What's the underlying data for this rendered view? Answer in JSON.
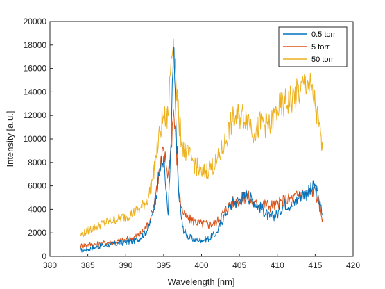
{
  "chart_data": {
    "type": "line",
    "title": "",
    "xlabel": "Wavelength [nm]",
    "ylabel": "Intensity [a.u.]",
    "xlim": [
      380,
      420
    ],
    "ylim": [
      0,
      20000
    ],
    "xticks": [
      "380",
      "385",
      "390",
      "395",
      "400",
      "405",
      "410",
      "415",
      "420"
    ],
    "yticks": [
      "0",
      "2000",
      "4000",
      "6000",
      "8000",
      "10000",
      "12000",
      "14000",
      "16000",
      "18000",
      "20000"
    ],
    "grid": false,
    "legend_position": "top-right",
    "series": [
      {
        "name": "0.5 torr",
        "color": "#0072BD",
        "x": [
          384,
          385,
          386,
          387,
          388,
          389,
          390,
          391,
          392,
          393,
          393.5,
          394,
          394.5,
          395,
          395.3,
          395.6,
          396,
          396.3,
          396.6,
          397,
          397.5,
          398,
          399,
          400,
          401,
          402,
          403,
          404,
          405,
          406,
          407,
          408,
          409,
          410,
          411,
          412,
          413,
          414,
          415,
          416
        ],
        "y": [
          500,
          600,
          800,
          900,
          1000,
          1100,
          1200,
          1300,
          1600,
          2400,
          3500,
          5200,
          7400,
          8500,
          5600,
          3500,
          10000,
          17800,
          12000,
          5200,
          2500,
          1800,
          1400,
          1400,
          1500,
          2000,
          3500,
          4500,
          4800,
          5200,
          4600,
          4000,
          3300,
          3600,
          4500,
          4300,
          5200,
          5400,
          6000,
          3500
        ]
      },
      {
        "name": "5 torr",
        "color": "#D95319",
        "x": [
          384,
          385,
          386,
          387,
          388,
          389,
          390,
          391,
          392,
          393,
          393.5,
          394,
          394.5,
          395,
          395.3,
          395.6,
          396,
          396.3,
          396.6,
          397,
          397.5,
          398,
          399,
          400,
          401,
          402,
          403,
          404,
          405,
          406,
          407,
          408,
          409,
          410,
          411,
          412,
          413,
          414,
          415,
          416
        ],
        "y": [
          900,
          1000,
          1000,
          1100,
          1200,
          1300,
          1400,
          1600,
          1900,
          2800,
          3800,
          5500,
          7500,
          9000,
          8000,
          7000,
          9500,
          12500,
          10000,
          5500,
          3800,
          3300,
          3000,
          2800,
          2700,
          2900,
          3800,
          4600,
          4700,
          5200,
          4400,
          4500,
          4300,
          4400,
          4800,
          4900,
          5300,
          5300,
          5700,
          3200
        ]
      },
      {
        "name": "50 torr",
        "color": "#EDB120",
        "x": [
          384,
          385,
          386,
          387,
          388,
          389,
          390,
          391,
          392,
          393,
          393.5,
          394,
          394.5,
          395,
          395.3,
          395.6,
          396,
          396.3,
          396.6,
          397,
          397.5,
          398,
          399,
          400,
          401,
          402,
          403,
          404,
          405,
          406,
          407,
          408,
          409,
          410,
          411,
          412,
          413,
          414,
          415,
          416
        ],
        "y": [
          1800,
          2200,
          2500,
          2800,
          3000,
          3200,
          3400,
          3700,
          4100,
          5000,
          6500,
          8500,
          10500,
          12000,
          11500,
          12000,
          17000,
          18500,
          15500,
          11500,
          9500,
          8800,
          8000,
          7000,
          7500,
          8000,
          9500,
          11500,
          12000,
          12000,
          10500,
          11500,
          11000,
          12500,
          13000,
          13500,
          14000,
          15000,
          13000,
          9000
        ]
      }
    ]
  }
}
